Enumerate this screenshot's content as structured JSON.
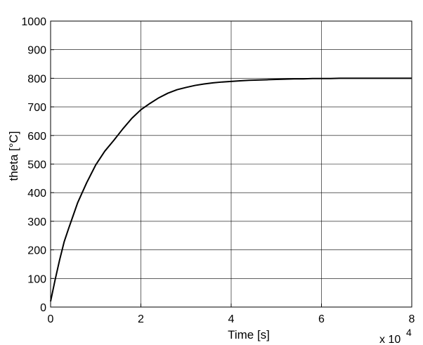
{
  "chart_data": {
    "type": "line",
    "title": "",
    "xlabel": "Time [s]",
    "ylabel": "theta [°C]",
    "x_multiplier_label": "x 10",
    "x_multiplier_exponent": "4",
    "xlim": [
      0,
      80000
    ],
    "ylim": [
      0,
      1000
    ],
    "xticks": [
      0,
      20000,
      40000,
      60000,
      80000
    ],
    "xtick_labels": [
      "0",
      "2",
      "4",
      "6",
      "8"
    ],
    "yticks": [
      0,
      100,
      200,
      300,
      400,
      500,
      600,
      700,
      800,
      900,
      1000
    ],
    "ytick_labels": [
      "0",
      "100",
      "200",
      "300",
      "400",
      "500",
      "600",
      "700",
      "800",
      "900",
      "1000"
    ],
    "grid": true,
    "line_color": "#000000",
    "series": [
      {
        "x": [
          0,
          1000,
          2000,
          3000,
          4000,
          5000,
          6000,
          8000,
          10000,
          12000,
          14000,
          16000,
          18000,
          20000,
          22000,
          24000,
          26000,
          28000,
          30000,
          32000,
          34000,
          36000,
          38000,
          40000,
          42000,
          44000,
          46000,
          48000,
          50000,
          52000,
          54000,
          56000,
          58000,
          60000,
          62000,
          64000,
          66000,
          68000,
          70000,
          72000,
          74000,
          76000,
          78000,
          80000
        ],
        "y": [
          20,
          95,
          165,
          228,
          275,
          320,
          365,
          435,
          497,
          545,
          583,
          623,
          660,
          690,
          712,
          732,
          748,
          760,
          768,
          775,
          780,
          784,
          787,
          789,
          791,
          793,
          794,
          795,
          796,
          797,
          798,
          798,
          799,
          799,
          799,
          800,
          800,
          800,
          800,
          800,
          800,
          800,
          800,
          800
        ]
      }
    ]
  }
}
